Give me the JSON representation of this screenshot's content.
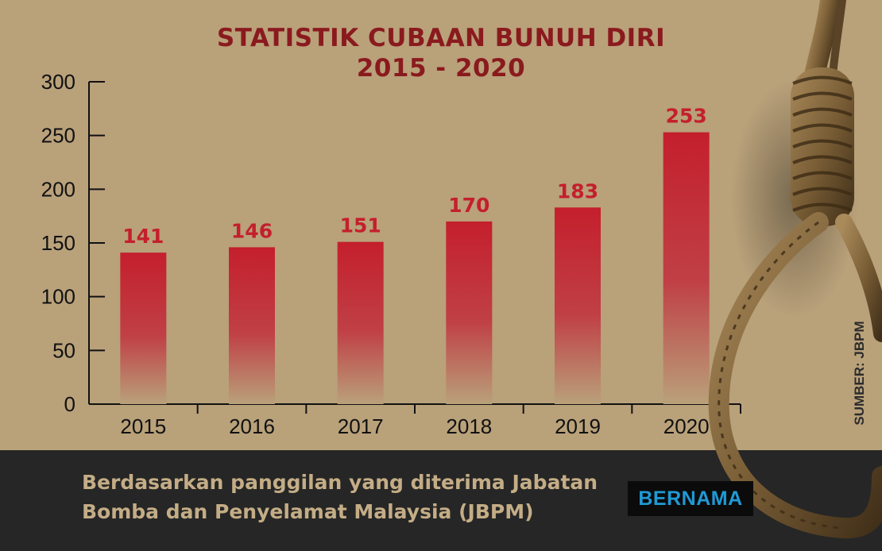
{
  "chart_data": {
    "type": "bar",
    "title_line1": "STATISTIK CUBAAN BUNUH DIRI",
    "title_line2": "2015 - 2020",
    "categories": [
      "2015",
      "2016",
      "2017",
      "2018",
      "2019",
      "2020"
    ],
    "values": [
      141,
      146,
      151,
      170,
      183,
      253
    ],
    "data_labels": [
      "141",
      "146",
      "151",
      "170",
      "183",
      "253"
    ],
    "yticks": [
      "0",
      "50",
      "100",
      "150",
      "200",
      "250",
      "300"
    ],
    "ylim": [
      0,
      300
    ],
    "grid": false,
    "xlabel": "",
    "ylabel": ""
  },
  "caption": {
    "line1": "Berdasarkan panggilan yang diterima Jabatan",
    "line2": "Bomba dan Penyelamat Malaysia (JBPM)"
  },
  "source": "SUMBER: JBPM",
  "logo": "BERNAMA",
  "colors": {
    "background": "#b9a17a",
    "bar_top": "#c41f2c",
    "bar_bottom": "#b9a17a",
    "title": "#8a1a1e",
    "footer": "#262626",
    "caption": "#c4ad86",
    "logo": "#1f9ad6"
  },
  "decoration": "noose-rope-image"
}
